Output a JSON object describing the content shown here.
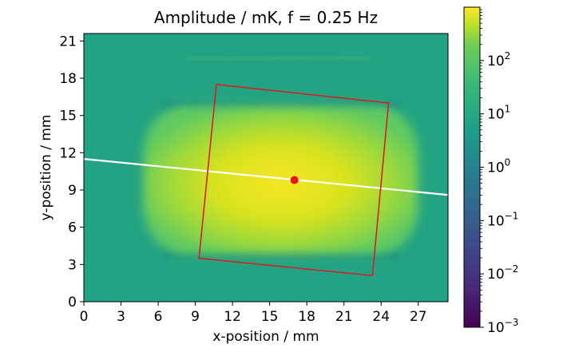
{
  "chart_data": {
    "type": "heatmap",
    "title": "Amplitude / mK, f = 0.25 Hz",
    "xlabel": "x-position / mm",
    "ylabel": "y-position / mm",
    "xlim": [
      0,
      29.4
    ],
    "ylim": [
      0,
      21.6
    ],
    "x_ticks": [
      0,
      3,
      6,
      9,
      12,
      15,
      18,
      21,
      24,
      27
    ],
    "y_ticks": [
      0,
      3,
      6,
      9,
      12,
      15,
      18,
      21
    ],
    "colorbar": {
      "scale": "log",
      "range": [
        0.001,
        1000
      ],
      "ticks": [
        {
          "base": "10",
          "exp": "−3",
          "value": 0.001
        },
        {
          "base": "10",
          "exp": "−2",
          "value": 0.01
        },
        {
          "base": "10",
          "exp": "−1",
          "value": 0.1
        },
        {
          "base": "10",
          "exp": "0",
          "value": 1
        },
        {
          "base": "10",
          "exp": "1",
          "value": 10
        },
        {
          "base": "10",
          "exp": "2",
          "value": 100
        }
      ],
      "colormap": "viridis"
    },
    "background_level_colour": "#23a383",
    "blob": {
      "x_range": [
        4.8,
        27.0
      ],
      "y_range": [
        3.8,
        15.8
      ],
      "colour_core": "#f2e51d",
      "colour_edge": "#7ad151"
    },
    "overlays": {
      "line": {
        "colour": "#ffffff",
        "points": [
          [
            0,
            11.5
          ],
          [
            29.4,
            8.6
          ]
        ]
      },
      "polygon": {
        "colour": "#d62020",
        "points": [
          [
            10.7,
            17.5
          ],
          [
            24.6,
            16.0
          ],
          [
            23.3,
            2.1
          ],
          [
            9.3,
            3.5
          ]
        ]
      },
      "marker": {
        "colour": "#ee1111",
        "x": 17.0,
        "y": 9.8
      }
    }
  }
}
